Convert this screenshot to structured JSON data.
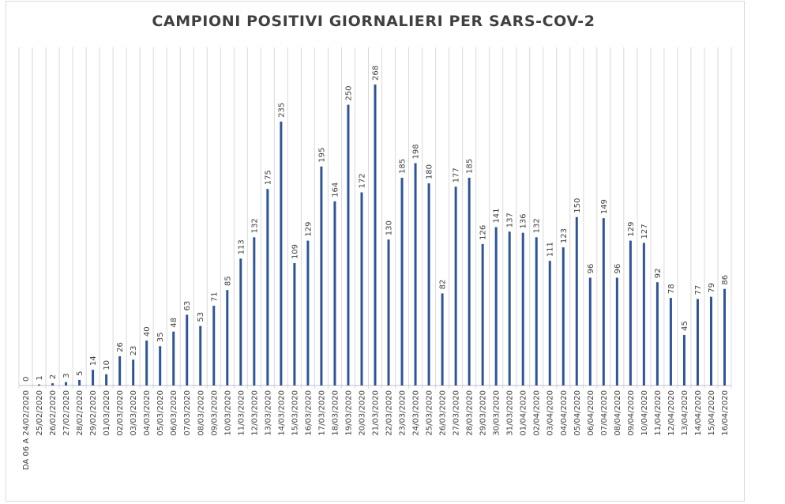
{
  "chart_data": {
    "type": "bar",
    "title": "CAMPIONI POSITIVI GIORNALIERI PER SARS-COV-2",
    "xlabel": "",
    "ylabel": "",
    "ylim": [
      0,
      280
    ],
    "grid": "vertical",
    "bar_color": "#2e5597",
    "categories": [
      "DA 06 A 24/02/2020",
      "25/02/2020",
      "26/02/2020",
      "27/02/2020",
      "28/02/2020",
      "29/02/2020",
      "01/03/2020",
      "02/03/2020",
      "03/03/2020",
      "04/03/2020",
      "05/03/2020",
      "06/03/2020",
      "07/03/2020",
      "08/03/2020",
      "09/03/2020",
      "10/03/2020",
      "11/03/2020",
      "12/03/2020",
      "13/03/2020",
      "14/03/2020",
      "15/03/2020",
      "16/03/2020",
      "17/03/2020",
      "18/03/2020",
      "19/03/2020",
      "20/03/2020",
      "21/03/2020",
      "22/03/2020",
      "23/03/2020",
      "24/03/2020",
      "25/03/2020",
      "26/03/2020",
      "27/03/2020",
      "28/03/2020",
      "29/03/2020",
      "30/03/2020",
      "31/03/2020",
      "01/04/2020",
      "02/04/2020",
      "03/04/2020",
      "04/04/2020",
      "05/04/2020",
      "06/04/2020",
      "07/04/2020",
      "08/04/2020",
      "09/04/2020",
      "10/04/2020",
      "11/04/2020",
      "12/04/2020",
      "13/04/2020",
      "14/04/2020",
      "15/04/2020",
      "16/04/2020"
    ],
    "values": [
      0,
      1,
      2,
      3,
      5,
      14,
      10,
      26,
      23,
      40,
      35,
      48,
      63,
      53,
      71,
      85,
      113,
      132,
      175,
      235,
      109,
      129,
      195,
      164,
      250,
      172,
      268,
      130,
      185,
      198,
      180,
      82,
      177,
      185,
      126,
      141,
      137,
      136,
      132,
      111,
      123,
      150,
      96,
      149,
      96,
      129,
      127,
      92,
      78,
      45,
      77,
      79,
      86
    ]
  }
}
